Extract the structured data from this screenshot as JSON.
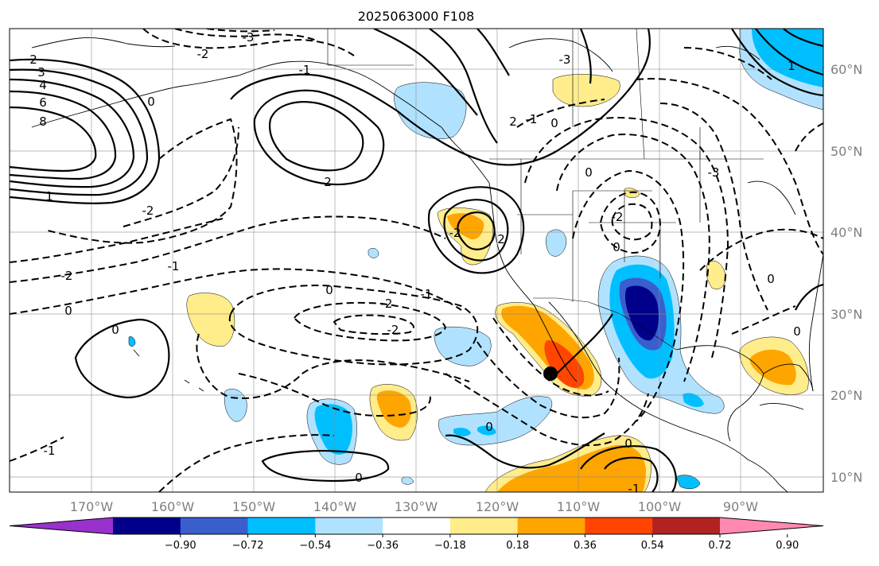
{
  "title": "2025063000 F108",
  "map": {
    "lat_labels": [
      "60°N",
      "50°N",
      "40°N",
      "30°N",
      "20°N",
      "10°N"
    ],
    "lon_labels": [
      "170°W",
      "160°W",
      "150°W",
      "140°W",
      "130°W",
      "120°W",
      "110°W",
      "100°W",
      "90°W"
    ],
    "gridlines": true,
    "point_marker": {
      "lon": -113.3,
      "lat": 22.5,
      "color": "#000000"
    }
  },
  "contour_labels": [
    "-3",
    "-2",
    "2",
    "3",
    "4",
    "6",
    "8",
    "0",
    "-1",
    "1",
    "2",
    "-2",
    "-2",
    "0",
    "-1",
    "-2",
    "0",
    "-2",
    "-1",
    "0",
    "0",
    "0",
    "-1",
    "0",
    "0",
    "-1",
    "-3",
    "0",
    "0",
    "-1",
    "2",
    "-2",
    "2",
    "-2",
    "0",
    "-3",
    "1",
    "0"
  ],
  "colorbar": {
    "tick_labels": [
      "−0.90",
      "−0.72",
      "−0.54",
      "−0.36",
      "−0.18",
      "0.18",
      "0.36",
      "0.54",
      "0.72",
      "0.90"
    ],
    "colors": [
      "#9932cc",
      "#00008b",
      "#3a5fcd",
      "#00bfff",
      "#b0e2ff",
      "#ffffff",
      "#ffec8b",
      "#ffa500",
      "#ff4500",
      "#b22222",
      "#ff89b3"
    ],
    "extend": "both"
  }
}
